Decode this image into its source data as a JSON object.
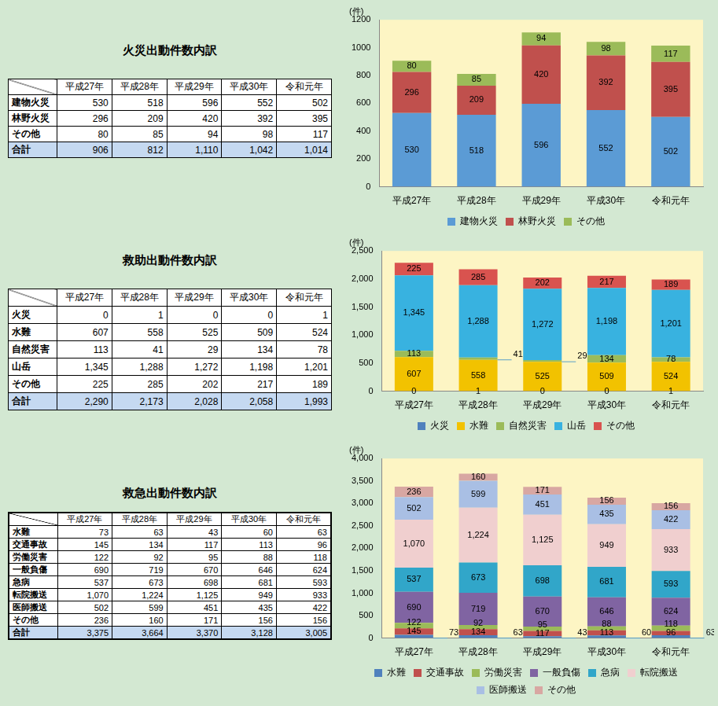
{
  "tables": [
    {
      "title": "火災出動件数内訳",
      "columns": [
        "平成27年",
        "平成28年",
        "平成29年",
        "平成30年",
        "令和元年"
      ],
      "rows": [
        {
          "label": "建物火災",
          "cells": [
            "530",
            "518",
            "596",
            "552",
            "502"
          ]
        },
        {
          "label": "林野火災",
          "cells": [
            "296",
            "209",
            "420",
            "392",
            "395"
          ]
        },
        {
          "label": "その他",
          "cells": [
            "80",
            "85",
            "94",
            "98",
            "117"
          ]
        }
      ],
      "total": {
        "label": "合計",
        "cells": [
          "906",
          "812",
          "1,110",
          "1,042",
          "1,014"
        ]
      }
    },
    {
      "title": "救助出動件数内訳",
      "columns": [
        "平成27年",
        "平成28年",
        "平成29年",
        "平成30年",
        "令和元年"
      ],
      "rows": [
        {
          "label": "火災",
          "cells": [
            "0",
            "1",
            "0",
            "0",
            "1"
          ]
        },
        {
          "label": "水難",
          "cells": [
            "607",
            "558",
            "525",
            "509",
            "524"
          ]
        },
        {
          "label": "自然災害",
          "cells": [
            "113",
            "41",
            "29",
            "134",
            "78"
          ]
        },
        {
          "label": "山岳",
          "cells": [
            "1,345",
            "1,288",
            "1,272",
            "1,198",
            "1,201"
          ]
        },
        {
          "label": "その他",
          "cells": [
            "225",
            "285",
            "202",
            "217",
            "189"
          ]
        }
      ],
      "total": {
        "label": "合計",
        "cells": [
          "2,290",
          "2,173",
          "2,028",
          "2,058",
          "1,993"
        ]
      }
    },
    {
      "title": "救急出動件数内訳",
      "columns": [
        "平成27年",
        "平成28年",
        "平成29年",
        "平成30年",
        "令和元年"
      ],
      "rows": [
        {
          "label": "水難",
          "cells": [
            "73",
            "63",
            "43",
            "60",
            "63"
          ]
        },
        {
          "label": "交通事故",
          "cells": [
            "145",
            "134",
            "117",
            "113",
            "96"
          ]
        },
        {
          "label": "労働災害",
          "cells": [
            "122",
            "92",
            "95",
            "88",
            "118"
          ]
        },
        {
          "label": "一般負傷",
          "cells": [
            "690",
            "719",
            "670",
            "646",
            "624"
          ]
        },
        {
          "label": "急病",
          "cells": [
            "537",
            "673",
            "698",
            "681",
            "593"
          ]
        },
        {
          "label": "転院搬送",
          "cells": [
            "1,070",
            "1,224",
            "1,125",
            "949",
            "933"
          ]
        },
        {
          "label": "医師搬送",
          "cells": [
            "502",
            "599",
            "451",
            "435",
            "422"
          ]
        },
        {
          "label": "その他",
          "cells": [
            "236",
            "160",
            "171",
            "156",
            "156"
          ]
        }
      ],
      "total": {
        "label": "合計",
        "cells": [
          "3,375",
          "3,664",
          "3,370",
          "3,128",
          "3,005"
        ]
      }
    }
  ],
  "chart_data": [
    {
      "type": "bar",
      "ylabel": "(件)",
      "categories": [
        "平成27年",
        "平成28年",
        "平成29年",
        "平成30年",
        "令和元年"
      ],
      "series": [
        {
          "name": "建物火災",
          "color": "#5b9bd5",
          "values": [
            530,
            518,
            596,
            552,
            502
          ]
        },
        {
          "name": "林野火災",
          "color": "#c0504d",
          "values": [
            296,
            209,
            420,
            392,
            395
          ]
        },
        {
          "name": "その他",
          "color": "#9bbb59",
          "values": [
            80,
            85,
            94,
            98,
            117
          ]
        }
      ],
      "ylim": [
        0,
        1200
      ],
      "yticks": [
        0,
        200,
        400,
        600,
        800,
        1000,
        1200
      ],
      "stacked": true,
      "data_labels": true,
      "legend": "bottom",
      "grid": false
    },
    {
      "type": "bar",
      "ylabel": "(件)",
      "categories": [
        "平成27年",
        "平成28年",
        "平成29年",
        "平成30年",
        "令和元年"
      ],
      "series": [
        {
          "name": "火災",
          "color": "#4f81bd",
          "values": [
            0,
            1,
            0,
            0,
            1
          ]
        },
        {
          "name": "水難",
          "color": "#f2c200",
          "values": [
            607,
            558,
            525,
            509,
            524
          ]
        },
        {
          "name": "自然災害",
          "color": "#9bbb59",
          "values": [
            113,
            41,
            29,
            134,
            78
          ]
        },
        {
          "name": "山岳",
          "color": "#38b2e0",
          "values": [
            1345,
            1288,
            1272,
            1198,
            1201
          ],
          "value_labels": [
            "1,345",
            "1,288",
            "1,272",
            "1,198",
            "1,201"
          ]
        },
        {
          "name": "その他",
          "color": "#d9534f",
          "values": [
            225,
            285,
            202,
            217,
            189
          ]
        }
      ],
      "ylim": [
        0,
        2500
      ],
      "yticks": [
        0,
        500,
        {
          "value": 1000,
          "label": "1,000"
        },
        {
          "value": 1500,
          "label": "1,500"
        },
        {
          "value": 2000,
          "label": "2,000"
        },
        {
          "value": 2500,
          "label": "2,500"
        }
      ],
      "stacked": true,
      "data_labels": true,
      "legend": "bottom",
      "grid": false
    },
    {
      "type": "bar",
      "ylabel": "(件)",
      "categories": [
        "平成27年",
        "平成28年",
        "平成29年",
        "平成30年",
        "令和元年"
      ],
      "series": [
        {
          "name": "水難",
          "color": "#4f81bd",
          "values": [
            73,
            63,
            43,
            60,
            63
          ]
        },
        {
          "name": "交通事故",
          "color": "#c0504d",
          "values": [
            145,
            134,
            117,
            113,
            96
          ]
        },
        {
          "name": "労働災害",
          "color": "#9bbb59",
          "values": [
            122,
            92,
            95,
            88,
            118
          ]
        },
        {
          "name": "一般負傷",
          "color": "#8064a2",
          "values": [
            690,
            719,
            670,
            646,
            624
          ]
        },
        {
          "name": "急病",
          "color": "#31a6c9",
          "values": [
            537,
            673,
            698,
            681,
            593
          ]
        },
        {
          "name": "転院搬送",
          "color": "#f0cfcf",
          "values": [
            1070,
            1224,
            1125,
            949,
            933
          ],
          "value_labels": [
            "1,070",
            "1,224",
            "1,125",
            "949",
            "933"
          ]
        },
        {
          "name": "医師搬送",
          "color": "#a9bfe4",
          "values": [
            502,
            599,
            451,
            435,
            422
          ]
        },
        {
          "name": "その他",
          "color": "#d8a7a2",
          "values": [
            236,
            160,
            171,
            156,
            156
          ]
        }
      ],
      "ylim": [
        0,
        4000
      ],
      "yticks": [
        0,
        500,
        {
          "value": 1000,
          "label": "1,000"
        },
        {
          "value": 1500,
          "label": "1,500"
        },
        {
          "value": 2000,
          "label": "2,000"
        },
        {
          "value": 2500,
          "label": "2,500"
        },
        {
          "value": 3000,
          "label": "3,000"
        },
        {
          "value": 3500,
          "label": "3,500"
        },
        {
          "value": 4000,
          "label": "4,000"
        }
      ],
      "stacked": true,
      "data_labels": true,
      "legend": "bottom",
      "grid": false
    }
  ]
}
